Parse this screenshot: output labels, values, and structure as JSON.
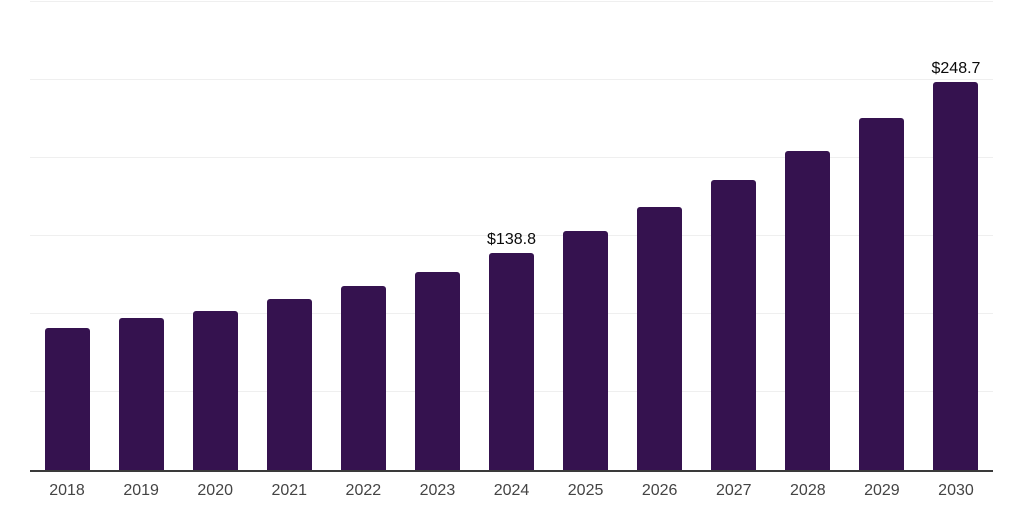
{
  "chart_data": {
    "type": "bar",
    "title": "",
    "xlabel": "",
    "ylabel": "",
    "categories": [
      "2018",
      "2019",
      "2020",
      "2021",
      "2022",
      "2023",
      "2024",
      "2025",
      "2026",
      "2027",
      "2028",
      "2029",
      "2030"
    ],
    "values": [
      91.0,
      97.5,
      101.9,
      109.5,
      117.8,
      126.8,
      138.8,
      153.0,
      168.6,
      185.8,
      204.8,
      225.7,
      248.7
    ],
    "value_labels": [
      "",
      "",
      "",
      "",
      "",
      "",
      "$138.8",
      "",
      "",
      "",
      "",
      "",
      "$248.7"
    ],
    "ylim": [
      0,
      300
    ],
    "gridline_interval": 50,
    "grid": "horizontal",
    "y_tick_labels_visible": false,
    "legend_position": "none",
    "colors": {
      "bar": "#35124F",
      "axis_line": "#3A3A3A",
      "gridline": "#EFEFEF",
      "value_label": "#0A0A0A",
      "tick_label": "#444444",
      "background": "#FFFFFF"
    }
  }
}
